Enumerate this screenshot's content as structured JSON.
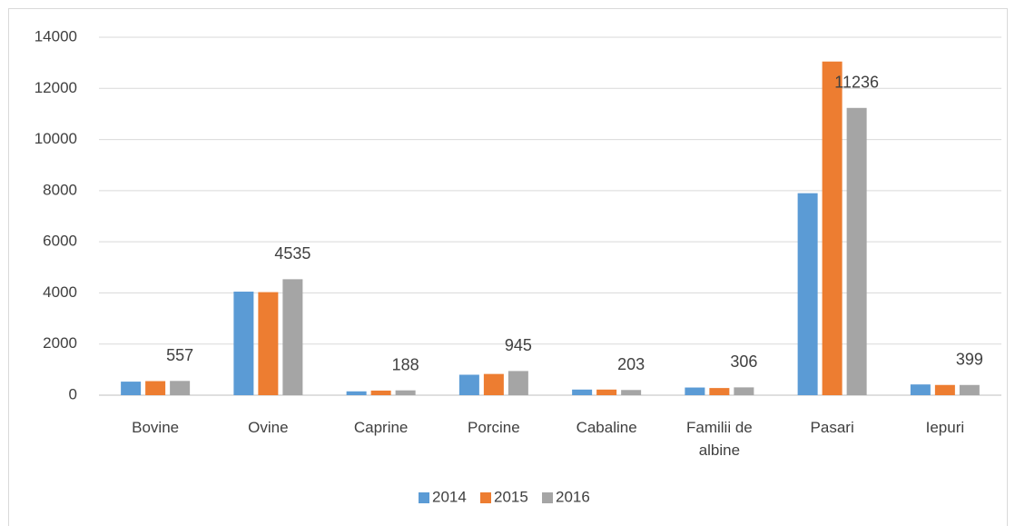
{
  "chart_data": {
    "type": "bar",
    "categories": [
      "Bovine",
      "Ovine",
      "Caprine",
      "Porcine",
      "Cabaline",
      "Familii de albine",
      "Pasari",
      "Iepuri"
    ],
    "series": [
      {
        "name": "2014",
        "color": "#5b9bd5",
        "values": [
          530,
          4050,
          150,
          800,
          220,
          300,
          7900,
          420
        ]
      },
      {
        "name": "2015",
        "color": "#ed7d31",
        "values": [
          550,
          4030,
          180,
          830,
          220,
          280,
          13050,
          400
        ]
      },
      {
        "name": "2016",
        "color": "#a5a5a5",
        "values": [
          557,
          4535,
          188,
          945,
          203,
          306,
          11236,
          399
        ],
        "data_labels": true
      }
    ],
    "ylim": [
      0,
      14000
    ],
    "yticks": [
      0,
      2000,
      4000,
      6000,
      8000,
      10000,
      12000,
      14000
    ],
    "grid": true,
    "legend": "bottom"
  }
}
